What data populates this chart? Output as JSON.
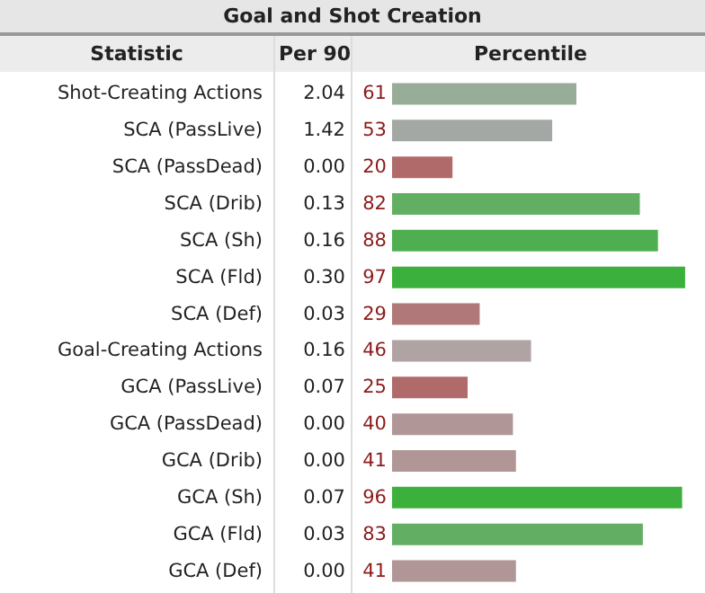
{
  "chart_data": {
    "type": "bar",
    "orientation": "horizontal",
    "title": "Goal and Shot Creation",
    "ylabel": "Statistic",
    "xlabel": "Percentile",
    "categories": [
      "Shot-Creating Actions",
      "SCA (PassLive)",
      "SCA (PassDead)",
      "SCA (Drib)",
      "SCA (Sh)",
      "SCA (Fld)",
      "SCA (Def)",
      "Goal-Creating Actions",
      "GCA (PassLive)",
      "GCA (PassDead)",
      "GCA (Drib)",
      "GCA (Sh)",
      "GCA (Fld)",
      "GCA (Def)"
    ],
    "values": [
      61,
      53,
      20,
      82,
      88,
      97,
      29,
      46,
      25,
      40,
      41,
      96,
      83,
      41
    ],
    "colors": [
      "#97ad97",
      "#a4a8a4",
      "#b06a6a",
      "#62ae62",
      "#4fae4f",
      "#3cb03c",
      "#b07878",
      "#b0a3a3",
      "#b06a6a",
      "#b09696",
      "#b09696",
      "#3cb03c",
      "#62ae62",
      "#b09696"
    ],
    "data_labels": true,
    "annotations": [
      "Per 90",
      "2.04",
      "1.42",
      "0.00",
      "0.13",
      "0.16",
      "0.30",
      "0.03",
      "0.16",
      "0.07",
      "0.00",
      "0.00",
      "0.07",
      "0.03",
      "0.00"
    ]
  }
}
